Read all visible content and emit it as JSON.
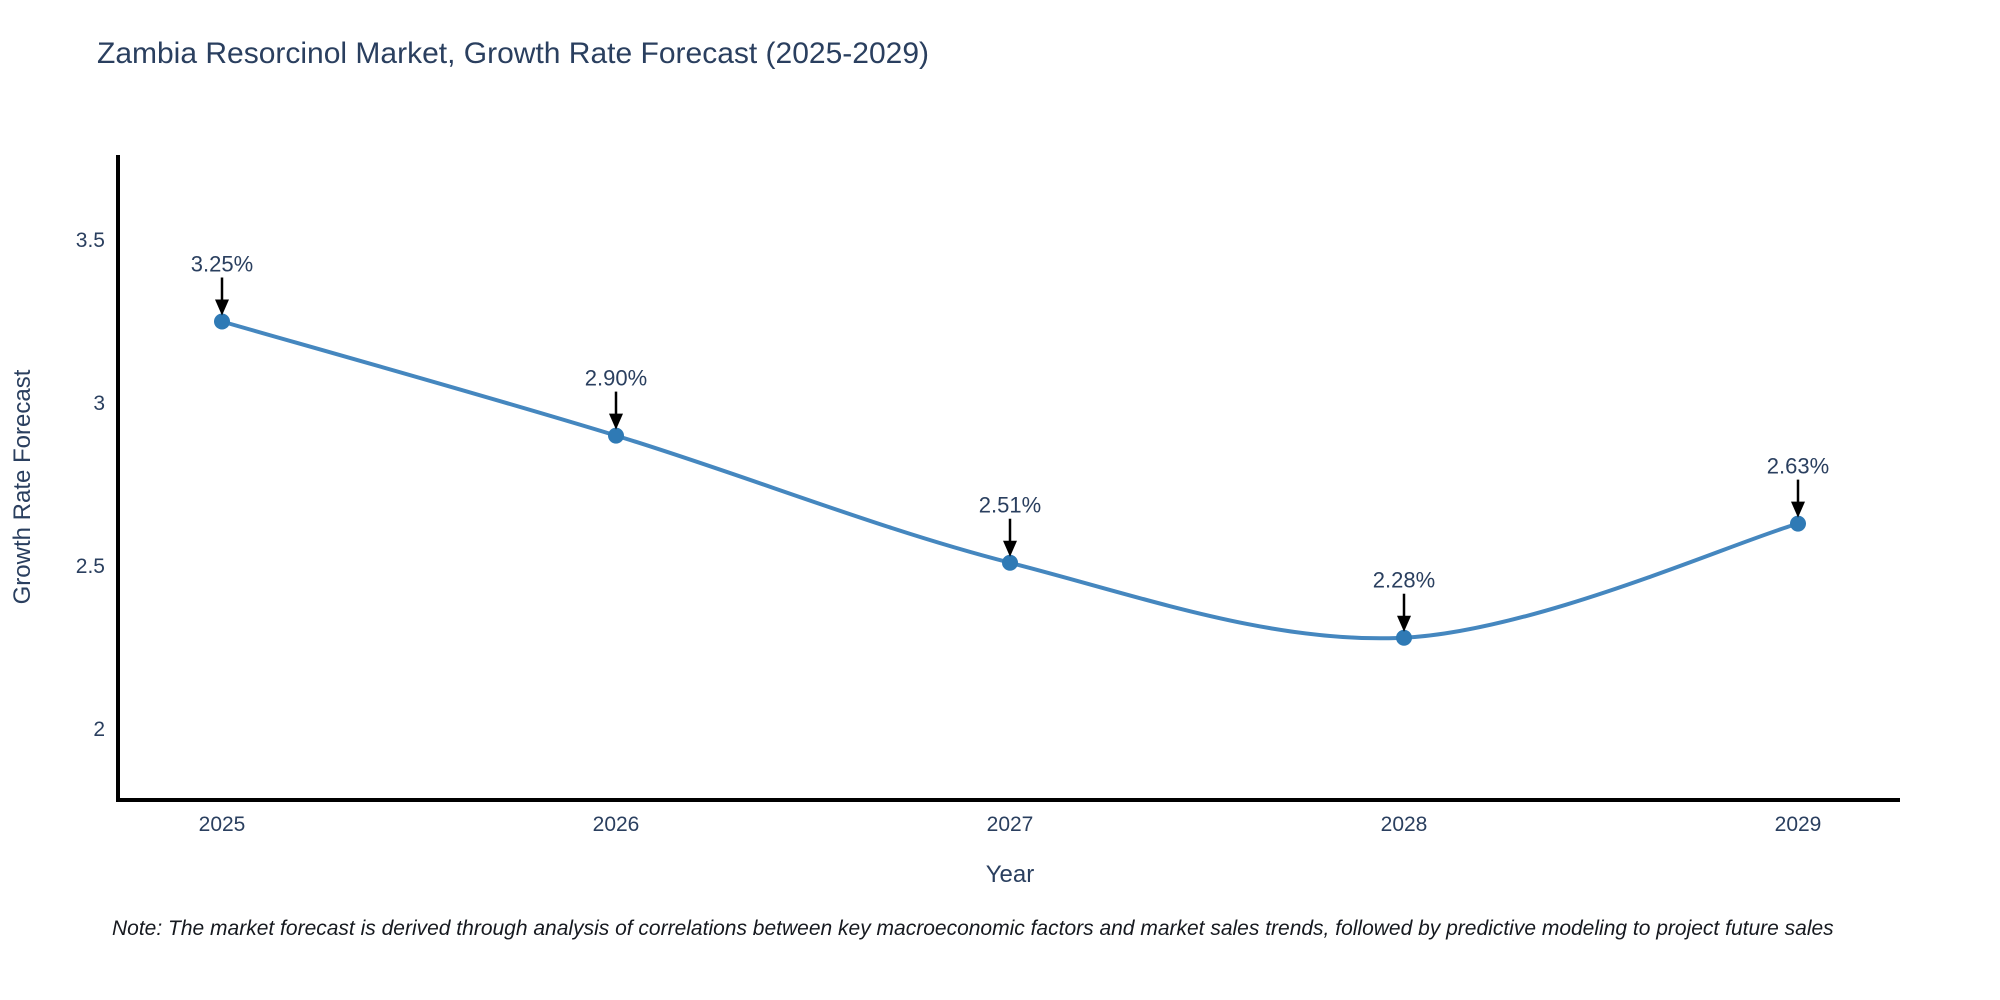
{
  "chart_data": {
    "type": "line",
    "title": "Zambia Resorcinol Market, Growth Rate Forecast (2025-2029)",
    "xlabel": "Year",
    "ylabel": "Growth Rate Forecast",
    "x": [
      2025,
      2026,
      2027,
      2028,
      2029
    ],
    "values": [
      3.25,
      2.9,
      2.51,
      2.28,
      2.63
    ],
    "point_labels": [
      "3.25%",
      "2.90%",
      "2.51%",
      "2.28%",
      "2.63%"
    ],
    "x_tick_labels": [
      "2025",
      "2026",
      "2027",
      "2028",
      "2029"
    ],
    "y_ticks": [
      3.5,
      3,
      2.5,
      2
    ],
    "y_tick_labels": [
      "3.5",
      "3",
      "2.5",
      "2"
    ],
    "ylim": [
      1.78,
      3.76
    ],
    "line_shape": "spline",
    "grid": false,
    "legend": "none",
    "colors": {
      "line": "#4587bf",
      "marker": "#2f7ab5",
      "annotation_arrow": "#000000",
      "axis": "#000000",
      "text": "#2a3f5f"
    },
    "note": "Note: The market forecast is derived through analysis of correlations between key macroeconomic factors and market sales trends, followed by predictive modeling to project future sales"
  }
}
